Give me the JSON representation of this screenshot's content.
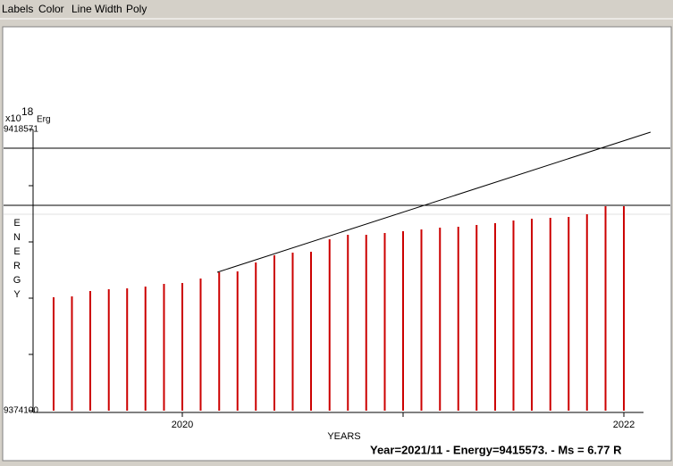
{
  "menu": [
    "Labels",
    "Color",
    "Line Width",
    "Poly"
  ],
  "status": "Year=2021/11 - Energy=9415573. - Ms = 6.77 R",
  "chart_data": {
    "type": "bar",
    "x_label": "YEARS",
    "y_label": "ENERGY",
    "unit_label": {
      "base": "x10",
      "exponent": "18",
      "unit": "Erg"
    },
    "color": "#cc0000",
    "x": [
      2019.417,
      2019.5,
      2019.583,
      2019.667,
      2019.75,
      2019.833,
      2019.917,
      2020.0,
      2020.083,
      2020.167,
      2020.25,
      2020.333,
      2020.417,
      2020.5,
      2020.583,
      2020.667,
      2020.75,
      2020.833,
      2020.917,
      2021.0,
      2021.083,
      2021.167,
      2021.25,
      2021.333,
      2021.417,
      2021.5,
      2021.583,
      2021.667,
      2021.75,
      2021.833,
      2021.917,
      2022.0
    ],
    "values": [
      9392030,
      9392171,
      9393018,
      9393300,
      9393442,
      9393724,
      9394148,
      9394289,
      9394995,
      9395983,
      9396124,
      9397536,
      9398665,
      9399089,
      9399230,
      9401207,
      9401912,
      9401912,
      9402195,
      9402477,
      9402760,
      9403042,
      9403183,
      9403465,
      9403748,
      9404171,
      9404454,
      9404595,
      9404736,
      9405160,
      9406430,
      9406430
    ],
    "trend_line": {
      "x": [
        2020.158,
        2022.121
      ],
      "values": [
        9395983,
        9418148
      ],
      "color": "#000000"
    },
    "horizontal_lines": [
      9415607,
      9406571
    ],
    "xlim": [
      2019.324,
      2022.089
    ],
    "ylim": [
      9374100,
      9418571
    ],
    "xticks": [
      2020,
      2022
    ],
    "x_minor_ticks": [
      2021
    ],
    "yticks": [
      9374100,
      9418571
    ],
    "y_minor_ticks": [
      9382994,
      9391888,
      9400783,
      9409677
    ]
  }
}
